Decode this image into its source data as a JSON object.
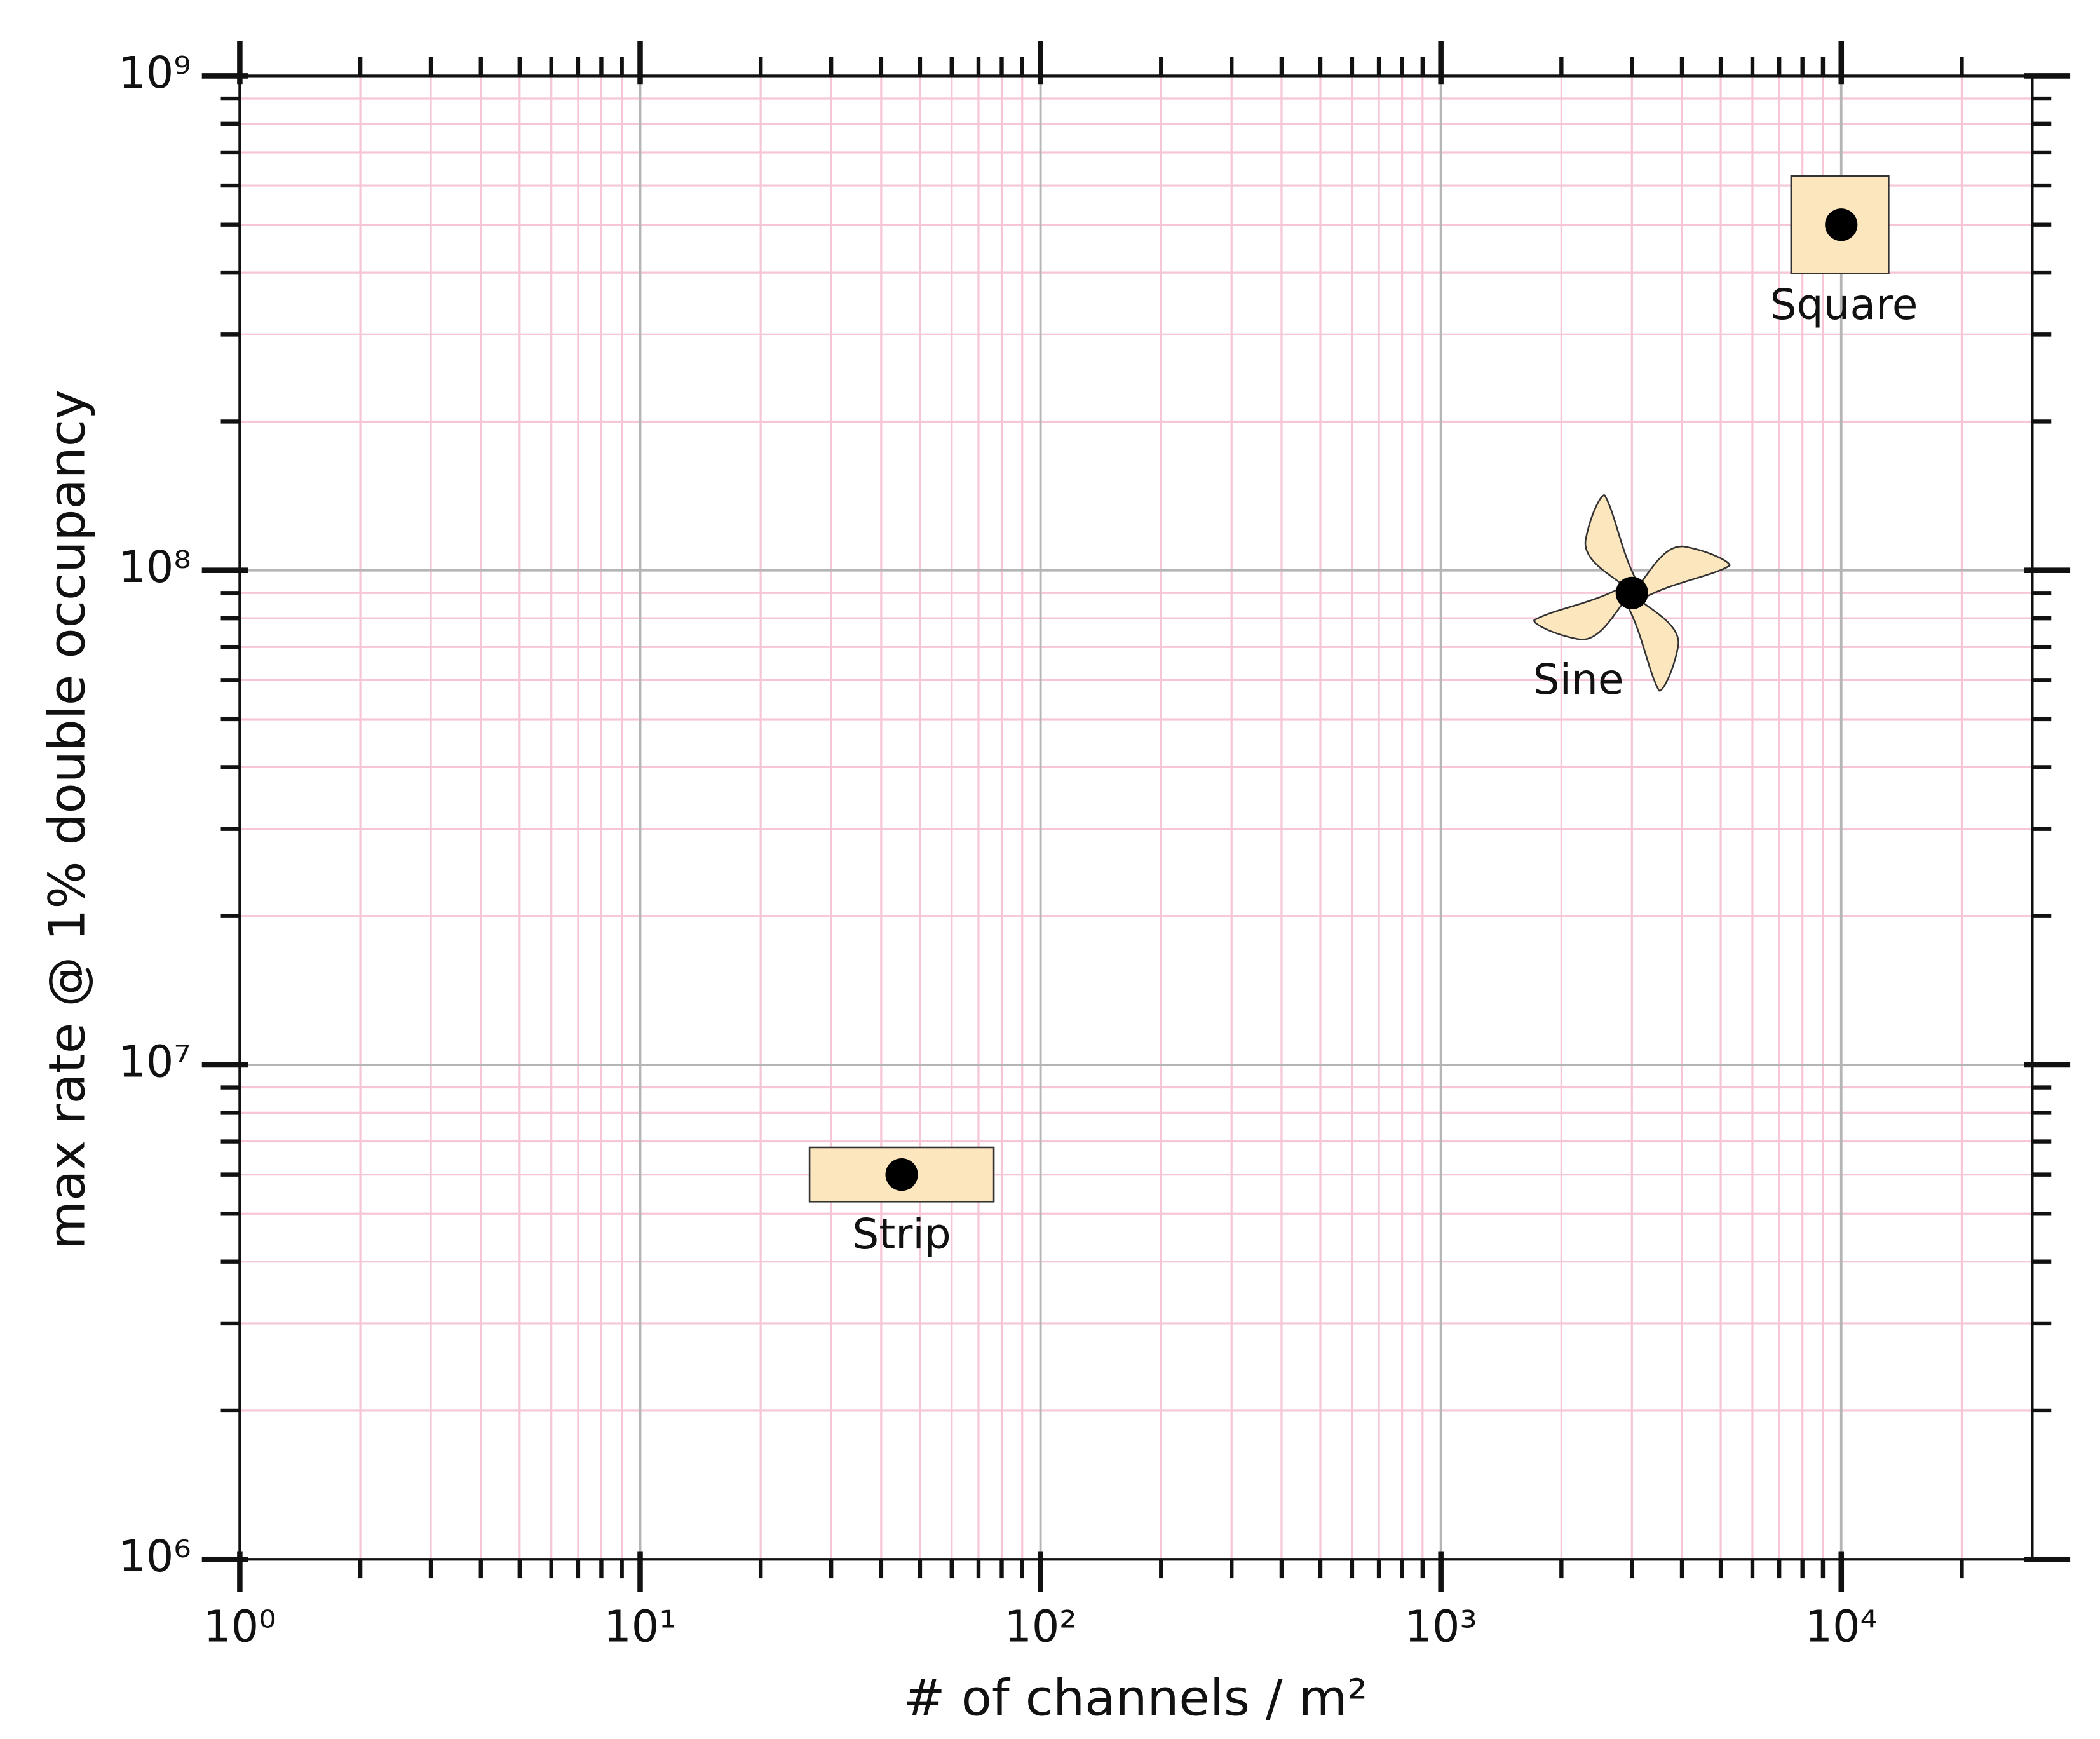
{
  "chart_data": {
    "type": "scatter",
    "x_label": "# of channels / m²",
    "y_label": "max rate @ 1% double occupancy",
    "x": [
      45,
      3000,
      10000
    ],
    "values": [
      6000000,
      90000000,
      500000000
    ],
    "point_labels": [
      "Strip",
      "Sine",
      "Square"
    ],
    "color": "#000000",
    "marker_background": "#fbe6bd",
    "log_x": true,
    "log_y": true,
    "grid": true,
    "major_grid_color": "#b5b5b5",
    "minor_grid_color": "#f6c6d6",
    "xlim": [
      1,
      30000
    ],
    "ylim": [
      1000000,
      1000000000
    ],
    "xticks": [
      {
        "value": 1,
        "label": "10⁰"
      },
      {
        "value": 10,
        "label": "10¹"
      },
      {
        "value": 100,
        "label": "10²"
      },
      {
        "value": 1000,
        "label": "10³"
      },
      {
        "value": 10000,
        "label": "10⁴"
      }
    ],
    "yticks": [
      {
        "value": 1000000,
        "label": "10⁶"
      },
      {
        "value": 10000000,
        "label": "10⁷"
      },
      {
        "value": 100000000,
        "label": "10⁸"
      },
      {
        "value": 1000000000,
        "label": "10⁹"
      }
    ],
    "xminorticks": [
      2,
      3,
      4,
      5,
      6,
      7,
      8,
      9,
      20,
      30,
      40,
      50,
      60,
      70,
      80,
      90,
      200,
      300,
      400,
      500,
      600,
      700,
      800,
      900,
      2000,
      3000,
      4000,
      5000,
      6000,
      7000,
      8000,
      9000,
      20000
    ],
    "yminorticks": [
      2000000,
      3000000,
      4000000,
      5000000,
      6000000,
      7000000,
      8000000,
      9000000,
      20000000,
      30000000,
      40000000,
      50000000,
      60000000,
      70000000,
      80000000,
      90000000,
      200000000,
      300000000,
      400000000,
      500000000,
      600000000,
      700000000,
      800000000,
      900000000
    ]
  }
}
